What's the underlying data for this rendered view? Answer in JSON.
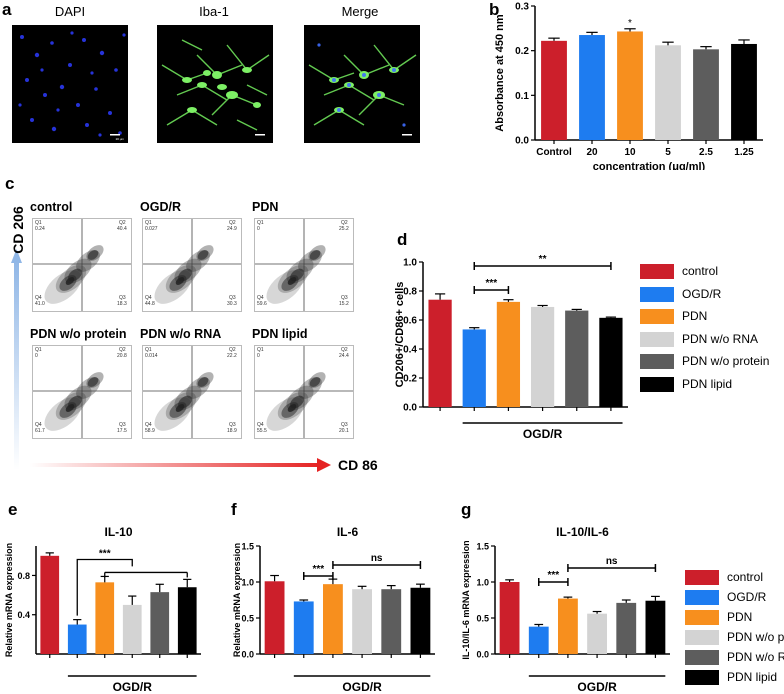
{
  "panel_letters": {
    "a": "a",
    "b": "b",
    "c": "c",
    "d": "d",
    "e": "e",
    "f": "f",
    "g": "g"
  },
  "panel_a": {
    "labels": [
      "DAPI",
      "Iba-1",
      "Merge"
    ],
    "scalebar": "20 μm"
  },
  "panel_c": {
    "y_axis": "CD 206",
    "x_axis": "CD 86",
    "plots": [
      {
        "title": "control",
        "q1": "Q1",
        "q1v": "0.24",
        "q2": "Q2",
        "q2v": "40.4",
        "q3": "Q3",
        "q3v": "18.3",
        "q4": "Q4",
        "q4v": "41.0"
      },
      {
        "title": "OGD/R",
        "q1": "Q1",
        "q1v": "0.027",
        "q2": "Q2",
        "q2v": "24.9",
        "q3": "Q3",
        "q3v": "30.3",
        "q4": "Q4",
        "q4v": "44.8"
      },
      {
        "title": "PDN",
        "q1": "Q1",
        "q1v": "0",
        "q2": "Q2",
        "q2v": "25.2",
        "q3": "Q3",
        "q3v": "15.2",
        "q4": "Q4",
        "q4v": "59.6"
      },
      {
        "title": "PDN w/o protein",
        "q1": "Q1",
        "q1v": "0",
        "q2": "Q2",
        "q2v": "20.8",
        "q3": "Q3",
        "q3v": "17.5",
        "q4": "Q4",
        "q4v": "61.7"
      },
      {
        "title": "PDN w/o RNA",
        "q1": "Q1",
        "q1v": "0.014",
        "q2": "Q2",
        "q2v": "22.2",
        "q3": "Q3",
        "q3v": "18.9",
        "q4": "Q4",
        "q4v": "58.9"
      },
      {
        "title": "PDN lipid",
        "q1": "Q1",
        "q1v": "0",
        "q2": "Q2",
        "q2v": "24.4",
        "q3": "Q3",
        "q3v": "20.1",
        "q4": "Q4",
        "q4v": "55.5"
      }
    ]
  },
  "legend_d": [
    {
      "label": "control",
      "color": "#cc1f2b"
    },
    {
      "label": "OGD/R",
      "color": "#1e7cf0"
    },
    {
      "label": "PDN",
      "color": "#f78f1e"
    },
    {
      "label": "PDN w/o RNA",
      "color": "#d3d3d3"
    },
    {
      "label": "PDN w/o protein",
      "color": "#5d5d5d"
    },
    {
      "label": "PDN lipid",
      "color": "#000000"
    }
  ],
  "legend_g": [
    {
      "label": "control",
      "color": "#cc1f2b"
    },
    {
      "label": "OGD/R",
      "color": "#1e7cf0"
    },
    {
      "label": "PDN",
      "color": "#f78f1e"
    },
    {
      "label": "PDN w/o protein",
      "color": "#d3d3d3"
    },
    {
      "label": "PDN w/o RNA",
      "color": "#5d5d5d"
    },
    {
      "label": "PDN lipid",
      "color": "#000000"
    }
  ],
  "chart_data": [
    {
      "id": "b",
      "type": "bar",
      "categories": [
        "Control",
        "20",
        "10",
        "5",
        "2.5",
        "1.25"
      ],
      "values": [
        0.222,
        0.235,
        0.243,
        0.212,
        0.203,
        0.215
      ],
      "errors": [
        0.006,
        0.006,
        0.006,
        0.007,
        0.006,
        0.009
      ],
      "colors": [
        "#cc1f2b",
        "#1e7cf0",
        "#f78f1e",
        "#d3d3d3",
        "#5d5d5d",
        "#000000"
      ],
      "ylabel": "Absorbance at 450 nm",
      "xlabel": "concentration (μg/ml)",
      "ylim": [
        0,
        0.3
      ],
      "yticks": [
        "0.0",
        "0.1",
        "0.2",
        "0.3"
      ],
      "ytick_values": [
        0,
        0.1,
        0.2,
        0.3
      ],
      "annotations": [
        {
          "text": "*",
          "category": "10"
        }
      ]
    },
    {
      "id": "d",
      "type": "bar",
      "values": [
        0.74,
        0.535,
        0.725,
        0.69,
        0.665,
        0.615
      ],
      "errors": [
        0.04,
        0.012,
        0.015,
        0.01,
        0.008,
        0.005
      ],
      "colors": [
        "#cc1f2b",
        "#1e7cf0",
        "#f78f1e",
        "#d3d3d3",
        "#5d5d5d",
        "#000000"
      ],
      "ylabel": "CD206+/CD86+ cells",
      "xlabel": "OGD/R",
      "ylim": [
        0,
        1.0
      ],
      "yticks": [
        "0.0",
        "0.2",
        "0.4",
        "0.6",
        "0.8",
        "1.0"
      ],
      "ytick_values": [
        0,
        0.2,
        0.4,
        0.6,
        0.8,
        1.0
      ],
      "significance": [
        {
          "text": "***",
          "from": 1,
          "to": 2
        },
        {
          "text": "**",
          "from": 1,
          "to": 5
        }
      ]
    },
    {
      "id": "e",
      "type": "bar",
      "title": "IL-10",
      "values": [
        1.0,
        0.3,
        0.73,
        0.5,
        0.63,
        0.68
      ],
      "errors": [
        0.03,
        0.05,
        0.06,
        0.09,
        0.08,
        0.08
      ],
      "colors": [
        "#cc1f2b",
        "#1e7cf0",
        "#f78f1e",
        "#d3d3d3",
        "#5d5d5d",
        "#000000"
      ],
      "ylabel": "Relative mRNA expression",
      "xlabel": "OGD/R",
      "ylim": [
        0,
        1.1
      ],
      "yticks": [
        "0.4",
        "0.8"
      ],
      "ytick_values": [
        0.4,
        0.8
      ],
      "significance": [
        {
          "text": "***",
          "from": 1,
          "to": 5,
          "type": "bracket"
        }
      ]
    },
    {
      "id": "f",
      "type": "bar",
      "title": "IL-6",
      "values": [
        1.01,
        0.73,
        0.97,
        0.9,
        0.9,
        0.92
      ],
      "errors": [
        0.08,
        0.02,
        0.07,
        0.04,
        0.05,
        0.05
      ],
      "colors": [
        "#cc1f2b",
        "#1e7cf0",
        "#f78f1e",
        "#d3d3d3",
        "#5d5d5d",
        "#000000"
      ],
      "ylabel": "Relative mRNA expression",
      "xlabel": "OGD/R",
      "ylim": [
        0,
        1.5
      ],
      "yticks": [
        "0.0",
        "0.5",
        "1.0",
        "1.5"
      ],
      "ytick_values": [
        0,
        0.5,
        1.0,
        1.5
      ],
      "significance": [
        {
          "text": "***",
          "from": 1,
          "to": 2
        },
        {
          "text": "ns",
          "from": 2,
          "to": 5
        }
      ]
    },
    {
      "id": "g",
      "type": "bar",
      "title": "IL-10/IL-6",
      "values": [
        1.0,
        0.38,
        0.77,
        0.56,
        0.71,
        0.74
      ],
      "errors": [
        0.03,
        0.03,
        0.02,
        0.03,
        0.04,
        0.06
      ],
      "colors": [
        "#cc1f2b",
        "#1e7cf0",
        "#f78f1e",
        "#d3d3d3",
        "#5d5d5d",
        "#000000"
      ],
      "ylabel": "IL-10/IL-6 mRNA expression",
      "xlabel": "OGD/R",
      "ylim": [
        0,
        1.5
      ],
      "yticks": [
        "0.0",
        "0.5",
        "1.0",
        "1.5"
      ],
      "ytick_values": [
        0,
        0.5,
        1.0,
        1.5
      ],
      "significance": [
        {
          "text": "***",
          "from": 1,
          "to": 2
        },
        {
          "text": "ns",
          "from": 2,
          "to": 5
        }
      ]
    }
  ]
}
